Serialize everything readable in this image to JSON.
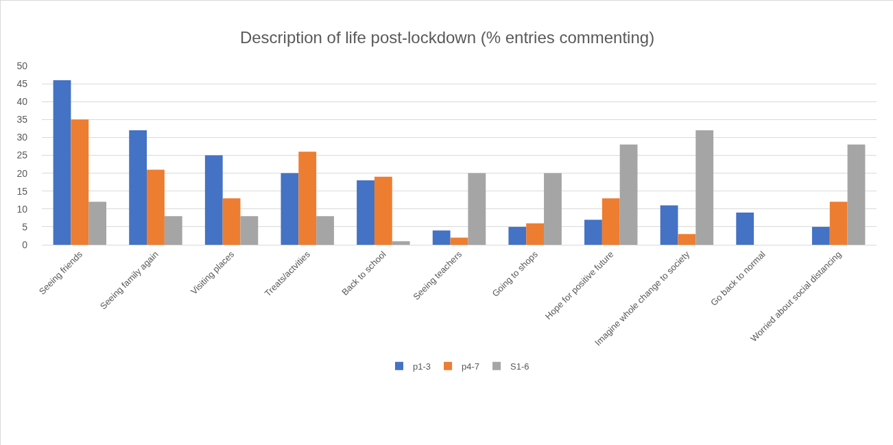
{
  "chart_data": {
    "type": "bar",
    "title": "Description of life post-lockdown (% entries commenting)",
    "categories": [
      "Seeing friends",
      "Seeing family again",
      "Visiting places",
      "Treats/actvities",
      "Back to school",
      "Seeing teachers",
      "Going to shops",
      "Hope for positive future",
      "Imagine whole change to society",
      "Go back to normal",
      "Worried about social distancing"
    ],
    "series": [
      {
        "name": "p1-3",
        "color": "#4472c4",
        "values": [
          46,
          32,
          25,
          20,
          18,
          4,
          5,
          7,
          11,
          9,
          5
        ]
      },
      {
        "name": "p4-7",
        "color": "#ed7d31",
        "values": [
          35,
          21,
          13,
          26,
          19,
          2,
          6,
          13,
          3,
          0,
          12
        ]
      },
      {
        "name": "S1-6",
        "color": "#a5a5a5",
        "values": [
          12,
          8,
          8,
          8,
          1,
          20,
          20,
          28,
          32,
          0,
          28
        ]
      }
    ],
    "ylim": [
      0,
      50
    ],
    "yticks": [
      0,
      5,
      10,
      15,
      20,
      25,
      30,
      35,
      40,
      45,
      50
    ],
    "grid": "y",
    "legend": "bottom"
  }
}
